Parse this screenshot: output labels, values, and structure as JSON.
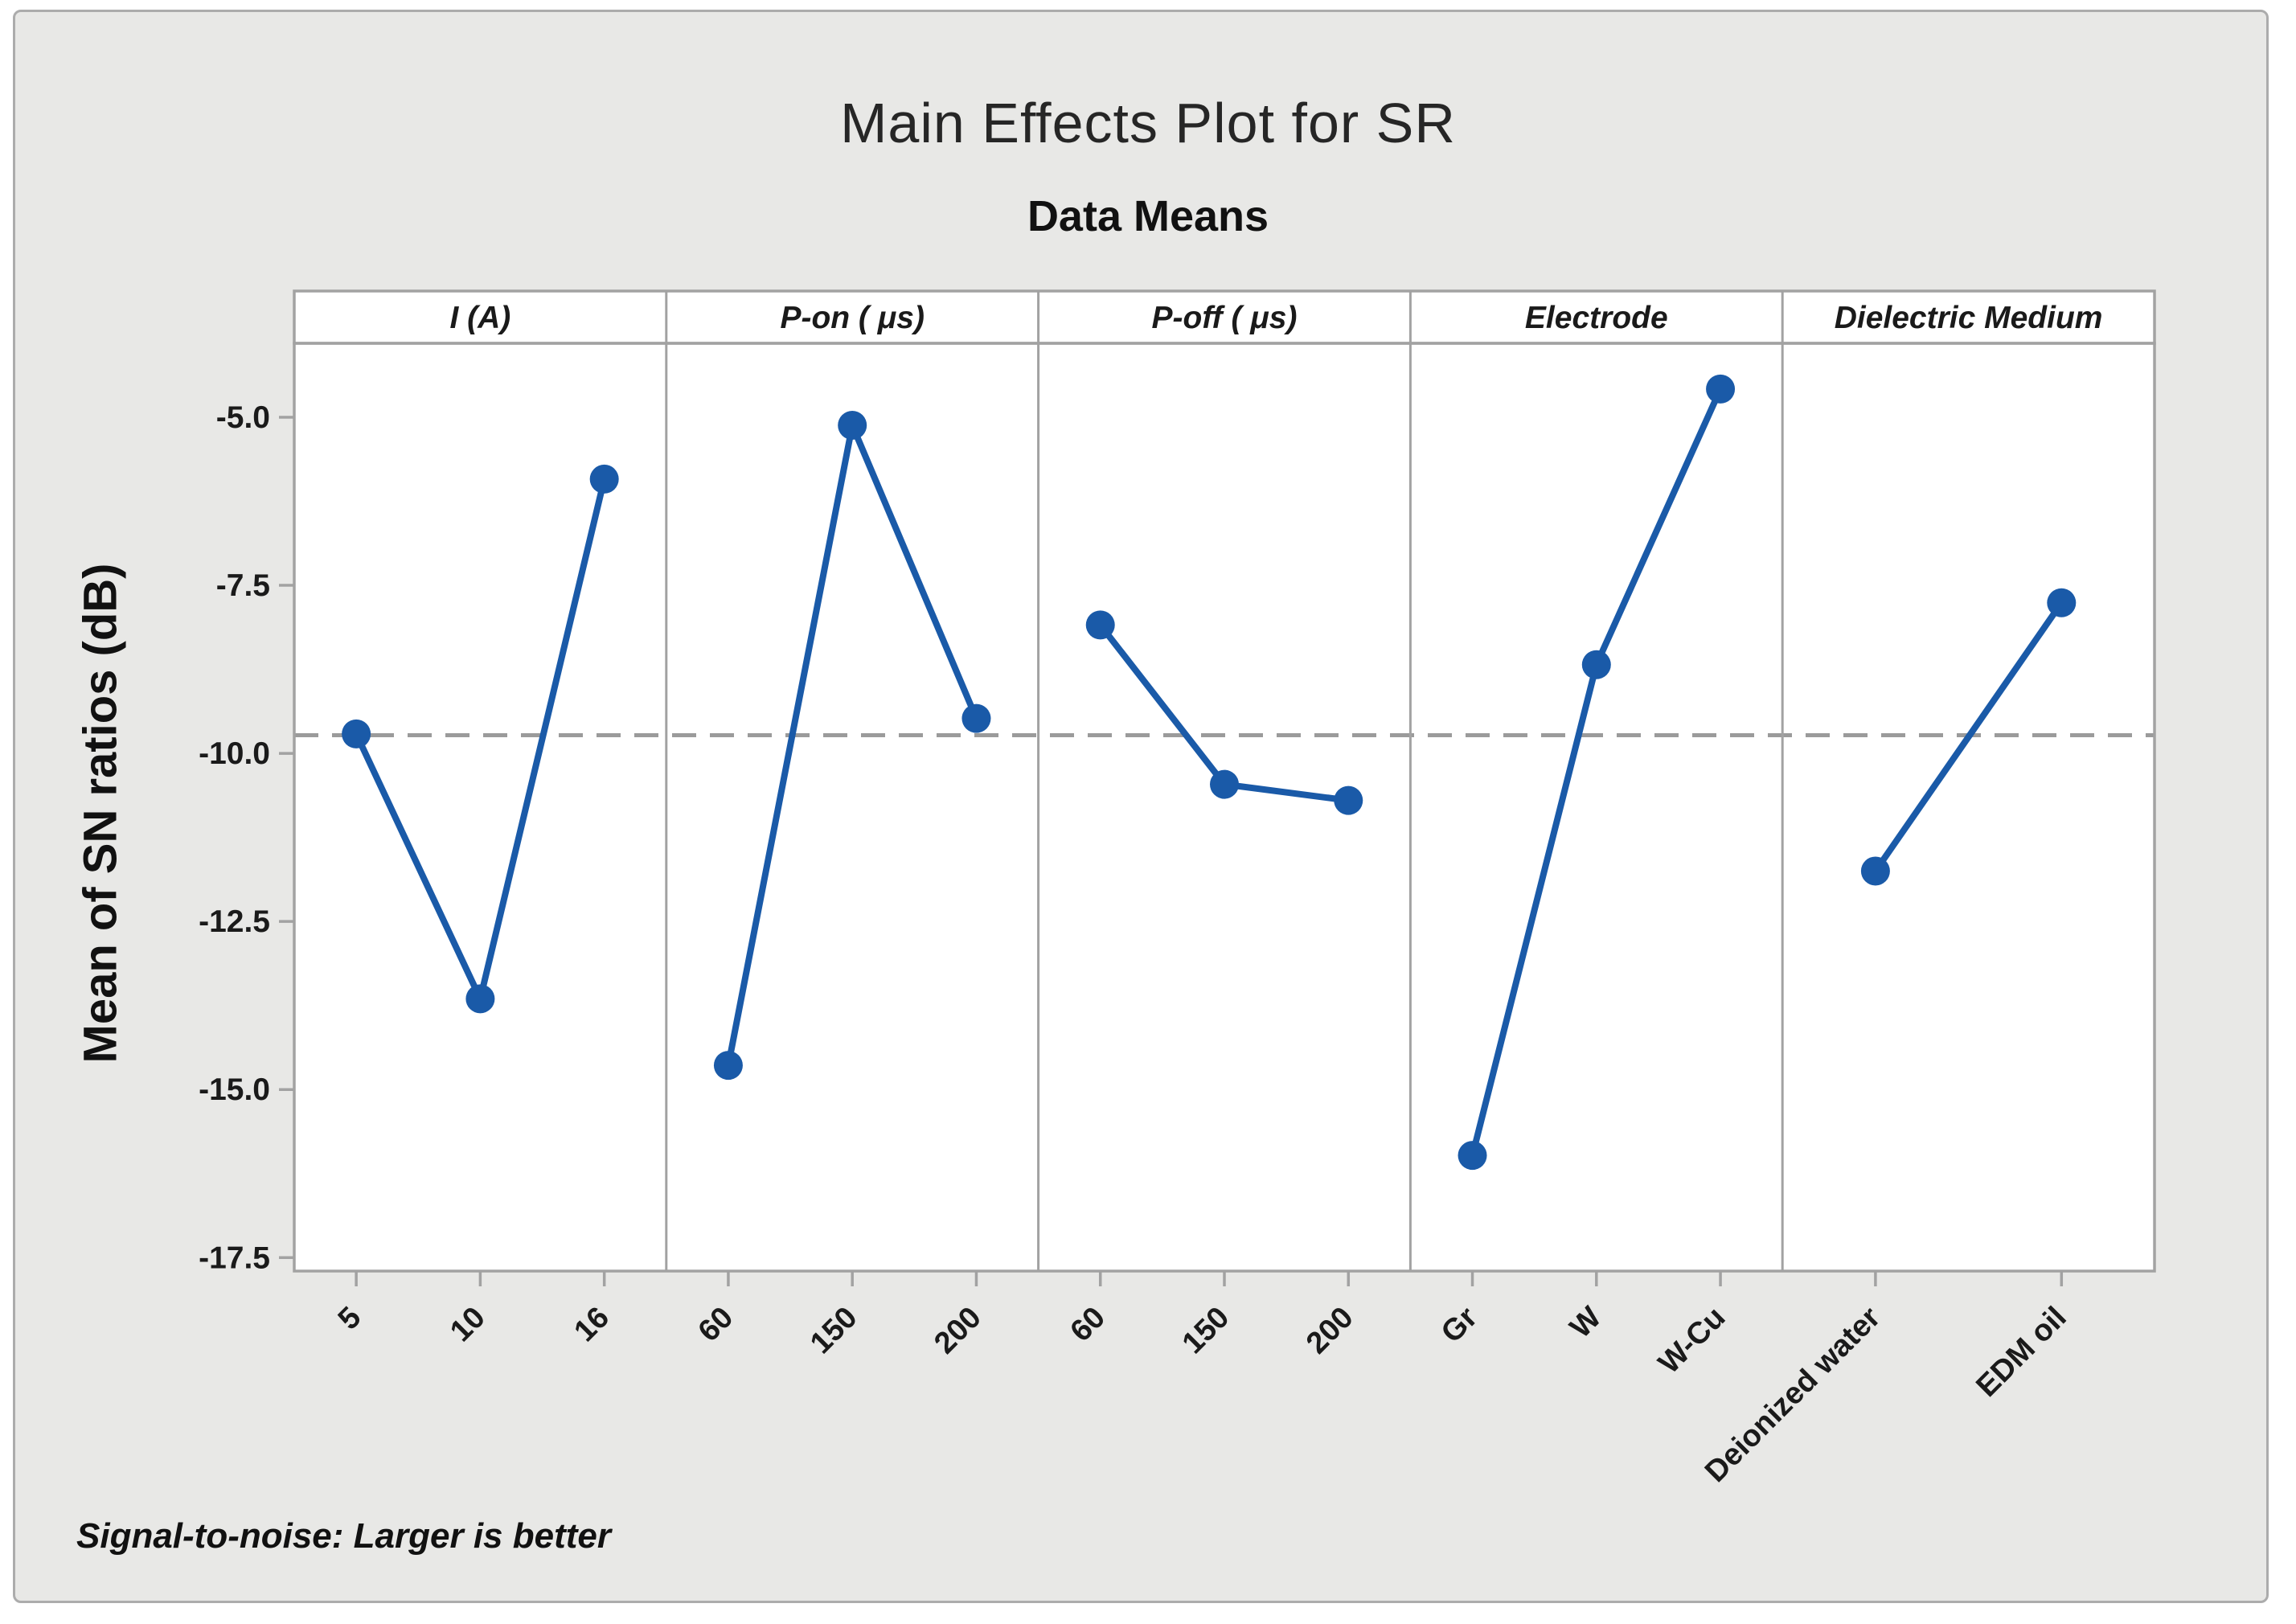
{
  "chart_data": {
    "type": "line",
    "title": "Main Effects Plot for SR",
    "subtitle": "Data Means",
    "ylabel": "Mean of SN ratios (dB)",
    "footnote": "Signal-to-noise: Larger is better",
    "ylim": [
      -17.7,
      -3.9
    ],
    "yticks": [
      -5.0,
      -7.5,
      -10.0,
      -12.5,
      -15.0,
      -17.5
    ],
    "ytick_labels": [
      "-5.0",
      "-7.5",
      "-10.0",
      "-12.5",
      "-15.0",
      "-17.5"
    ],
    "overall_mean": -9.73,
    "grid": false,
    "panels": [
      {
        "factor": "I (A)",
        "levels": [
          "5",
          "10",
          "16"
        ],
        "means": [
          -9.71,
          -13.65,
          -5.92
        ]
      },
      {
        "factor": "P-on ( μs)",
        "levels": [
          "60",
          "150",
          "200"
        ],
        "means": [
          -14.64,
          -5.12,
          -9.48
        ]
      },
      {
        "factor": "P-off ( μs)",
        "levels": [
          "60",
          "150",
          "200"
        ],
        "means": [
          -8.09,
          -10.46,
          -10.7
        ]
      },
      {
        "factor": "Electrode",
        "levels": [
          "Gr",
          "W",
          "W-Cu"
        ],
        "means": [
          -15.98,
          -8.68,
          -4.58
        ]
      },
      {
        "factor": "Dielectric Medium",
        "levels": [
          "Deionized water",
          "EDM oil"
        ],
        "means": [
          -11.75,
          -7.76
        ]
      }
    ],
    "colors": {
      "series": "#1A5AA8",
      "mean_line": "#9B9B9B",
      "frame": "#A2A2A2",
      "background": "#E8E8E6",
      "panel_fill": "#FFFFFF",
      "text": "#1A1A1A"
    }
  }
}
